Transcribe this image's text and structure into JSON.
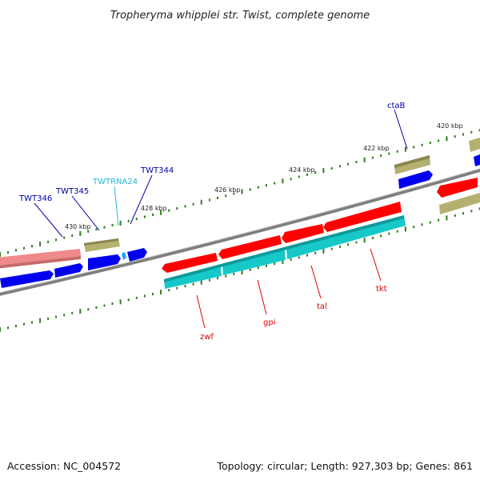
{
  "title": "Tropheryma whipplei str. Twist, complete genome",
  "accession": "Accession: NC_004572",
  "summary": "Topology: circular; Length: 927,303 bp; Genes: 861",
  "colors": {
    "backbone": "#7f7f7f",
    "tick": "#2e7d1f",
    "cds_red": "#ff0000",
    "cds_cyan": "#16c8c8",
    "cds_blue": "#0000ee",
    "cds_khaki": "#b4b070",
    "cds_pink": "#ef8a8a",
    "label_blue": "#0000aa",
    "label_cyan": "#22bbdd",
    "label_red": "#dd0000"
  },
  "ticks": [
    "420 kbp",
    "422 kbp",
    "424 kbp",
    "426 kbp",
    "428 kbp",
    "430 kbp"
  ],
  "genes": [
    {
      "label": "ctaB",
      "color": "label_blue"
    },
    {
      "label": "TWT344",
      "color": "label_blue"
    },
    {
      "label": "TWTRNA24",
      "color": "label_cyan"
    },
    {
      "label": "TWT345",
      "color": "label_blue"
    },
    {
      "label": "TWT346",
      "color": "label_blue"
    },
    {
      "label": "tkt",
      "color": "label_red"
    },
    {
      "label": "tal",
      "color": "label_red"
    },
    {
      "label": "gpi",
      "color": "label_red"
    },
    {
      "label": "zwf",
      "color": "label_red"
    }
  ]
}
